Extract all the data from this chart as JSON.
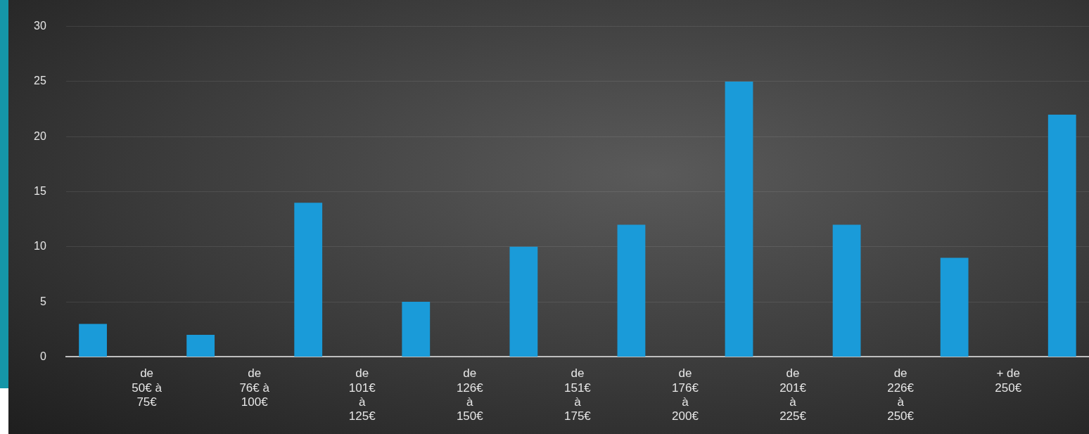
{
  "chart_data": {
    "type": "bar",
    "categories": [
      null,
      "de 50€ à 75€",
      null,
      "de 76€ à 100€",
      null,
      "de 101€ à 125€",
      null,
      "de 126€ à 150€",
      null,
      "de 151€ à 175€",
      null,
      "de 176€ à 200€",
      null,
      "de 201€ à 225€",
      null,
      "de 226€ à 250€",
      null,
      "+ de 250€",
      null
    ],
    "values": [
      3,
      null,
      2,
      null,
      14,
      null,
      5,
      null,
      10,
      null,
      12,
      null,
      25,
      null,
      12,
      null,
      9,
      null,
      22
    ],
    "color": "#1a9bd9",
    "ylim": [
      0,
      30
    ],
    "yticks": [
      0,
      5,
      10,
      15,
      20,
      25,
      30
    ],
    "grid": "y",
    "legend": false
  }
}
